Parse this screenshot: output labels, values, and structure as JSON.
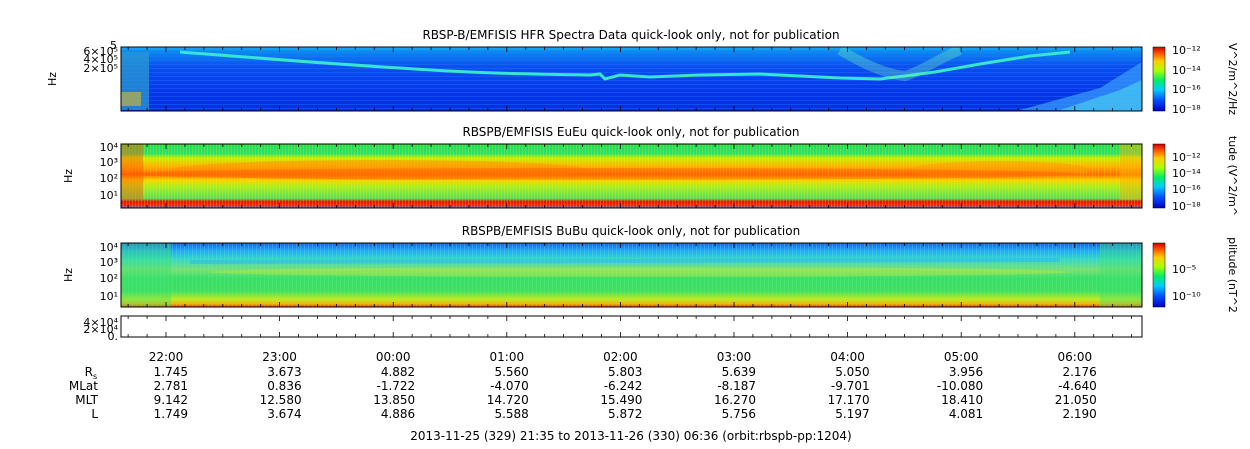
{
  "chart_data": [
    {
      "type": "heatmap",
      "title": "RBSP-B/EMFISIS  HFR Spectra Data quick-look only, not for publication",
      "ylabel": "Hz",
      "yticks": [
        "6×10⁵",
        "4×10⁵",
        "2×10⁵"
      ],
      "ytick_top": "5",
      "colorbar": {
        "label": "V^2/m^2/Hz",
        "ticks": [
          "10⁻¹²",
          "10⁻¹⁴",
          "10⁻¹⁶",
          "10⁻¹⁸"
        ]
      }
    },
    {
      "type": "heatmap",
      "title": "RBSPB/EMFISIS  EuEu quick-look only, not for publication",
      "ylabel": "Hz",
      "yticks": [
        "10⁴",
        "10³",
        "10²",
        "10¹"
      ],
      "colorbar": {
        "label": "tude (V^2/m^",
        "ticks": [
          "10⁻¹²",
          "10⁻¹⁴",
          "10⁻¹⁶",
          "10⁻¹⁸"
        ]
      }
    },
    {
      "type": "heatmap",
      "title": "RBSPB/EMFISIS  BuBu quick-look only, not for publication",
      "ylabel": "Hz",
      "yticks": [
        "10⁴",
        "10³",
        "10²",
        "10¹"
      ],
      "colorbar": {
        "label": "plitude (nT^2",
        "ticks": [
          "10⁻⁵",
          "10⁻¹⁰"
        ]
      }
    },
    {
      "type": "line",
      "title": "",
      "yticks": [
        "4×10⁴",
        "2×10⁴",
        "0."
      ]
    }
  ],
  "time_axis": {
    "ticks": [
      "22:00",
      "23:00",
      "00:00",
      "01:00",
      "02:00",
      "03:00",
      "04:00",
      "05:00",
      "06:00"
    ],
    "rows": [
      {
        "label": "R",
        "sub": "s",
        "values": [
          "1.745",
          "3.673",
          "4.882",
          "5.560",
          "5.803",
          "5.639",
          "5.050",
          "3.956",
          "2.176"
        ]
      },
      {
        "label": "MLat",
        "sub": "",
        "values": [
          "2.781",
          "0.836",
          "-1.722",
          "-4.070",
          "-6.242",
          "-8.187",
          "-9.701",
          "-10.080",
          "-4.640"
        ]
      },
      {
        "label": "MLT",
        "sub": "",
        "values": [
          "9.142",
          "12.580",
          "13.850",
          "14.720",
          "15.490",
          "16.270",
          "17.170",
          "18.410",
          "21.050"
        ]
      },
      {
        "label": "L",
        "sub": "",
        "values": [
          "1.749",
          "3.674",
          "4.886",
          "5.588",
          "5.872",
          "5.756",
          "5.197",
          "4.081",
          "2.190"
        ]
      }
    ],
    "caption": "2013-11-25 (329) 21:35 to 2013-11-26 (330) 06:36 (orbit:rbspb-pp:1204)"
  }
}
